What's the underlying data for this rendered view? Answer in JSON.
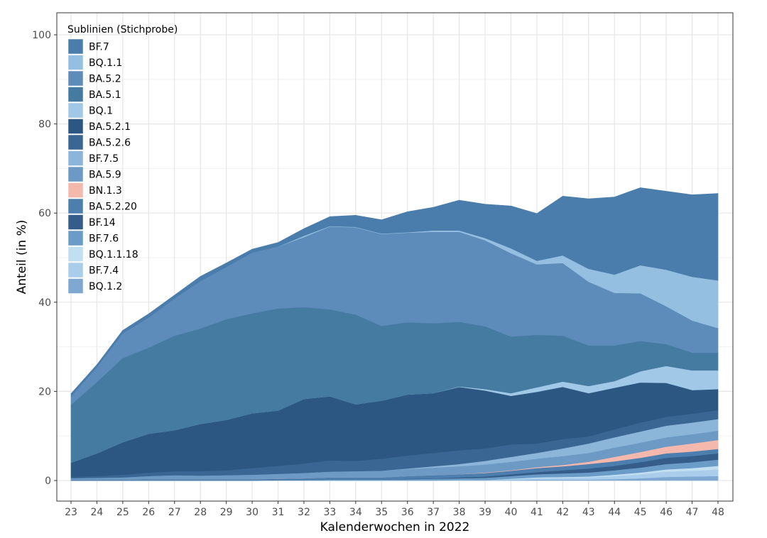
{
  "chart_data": {
    "type": "area",
    "stacked": true,
    "title": "",
    "xlabel": "Kalenderwochen in 2022",
    "ylabel": "Anteil (in %)",
    "xlim": [
      23,
      48
    ],
    "ylim": [
      0,
      100
    ],
    "x_ticks": [
      23,
      24,
      25,
      26,
      27,
      28,
      29,
      30,
      31,
      32,
      33,
      34,
      35,
      36,
      37,
      38,
      39,
      40,
      41,
      42,
      43,
      44,
      45,
      46,
      47,
      48
    ],
    "y_ticks": [
      0,
      20,
      40,
      60,
      80,
      100
    ],
    "grid": true,
    "legend": {
      "title": "Sublinien (Stichprobe)",
      "position": "top-left"
    },
    "x": [
      23,
      24,
      25,
      26,
      27,
      28,
      29,
      30,
      31,
      32,
      33,
      34,
      35,
      36,
      37,
      38,
      39,
      40,
      41,
      42,
      43,
      44,
      45,
      46,
      47,
      48
    ],
    "series": [
      {
        "name": "BQ.1.2",
        "color": "#7ea8d2",
        "values": [
          0,
          0,
          0,
          0,
          0,
          0,
          0,
          0,
          0,
          0,
          0,
          0,
          0,
          0,
          0,
          0.1,
          0.1,
          0.1,
          0.2,
          0.2,
          0.2,
          0.3,
          0.5,
          0.8,
          0.9,
          1.0
        ]
      },
      {
        "name": "BF.7.4",
        "color": "#a9cdea",
        "values": [
          0,
          0,
          0,
          0,
          0,
          0,
          0,
          0,
          0,
          0,
          0,
          0,
          0,
          0,
          0,
          0,
          0,
          0.2,
          0.3,
          0.4,
          0.5,
          0.7,
          0.9,
          1.2,
          1.3,
          1.5
        ]
      },
      {
        "name": "BQ.1.1.18",
        "color": "#c2dff2",
        "values": [
          0,
          0,
          0,
          0,
          0,
          0,
          0,
          0,
          0,
          0,
          0,
          0,
          0,
          0,
          0,
          0,
          0,
          0.1,
          0.2,
          0.2,
          0.2,
          0.3,
          0.4,
          0.5,
          0.6,
          0.8
        ]
      },
      {
        "name": "BF.7.6",
        "color": "#6a9cc7",
        "values": [
          0,
          0,
          0,
          0,
          0,
          0,
          0,
          0,
          0.1,
          0.1,
          0.2,
          0.2,
          0.2,
          0.3,
          0.4,
          0.4,
          0.5,
          0.6,
          0.7,
          0.8,
          0.9,
          1.0,
          1.1,
          1.2,
          1.3,
          1.4
        ]
      },
      {
        "name": "BF.14",
        "color": "#355d89",
        "values": [
          0,
          0,
          0,
          0,
          0,
          0,
          0,
          0,
          0,
          0,
          0,
          0,
          0,
          0.1,
          0.1,
          0.2,
          0.3,
          0.4,
          0.5,
          0.7,
          0.9,
          1.0,
          1.2,
          1.4,
          1.4,
          1.4
        ]
      },
      {
        "name": "BA.5.2.20",
        "color": "#4c7fae",
        "values": [
          0.2,
          0.2,
          0.2,
          0.3,
          0.3,
          0.3,
          0.3,
          0.3,
          0.3,
          0.4,
          0.5,
          0.5,
          0.5,
          0.6,
          0.7,
          0.7,
          0.8,
          0.8,
          0.9,
          0.9,
          1.0,
          1.0,
          1.0,
          1.0,
          1.0,
          1.0
        ]
      },
      {
        "name": "BN.1.3",
        "color": "#f5b8ad",
        "values": [
          0,
          0,
          0,
          0,
          0,
          0,
          0,
          0,
          0,
          0,
          0,
          0,
          0,
          0,
          0,
          0,
          0.1,
          0.1,
          0.2,
          0.3,
          0.5,
          1.0,
          1.3,
          1.5,
          1.8,
          2.0
        ]
      },
      {
        "name": "BA.5.9",
        "color": "#6d9ac4",
        "values": [
          0.3,
          0.4,
          0.5,
          0.7,
          0.9,
          0.8,
          0.9,
          1.0,
          1.1,
          1.2,
          1.3,
          1.4,
          1.5,
          1.6,
          1.7,
          1.8,
          1.8,
          1.9,
          1.9,
          2.0,
          2.0,
          2.1,
          2.1,
          2.1,
          2.1,
          2.1
        ]
      },
      {
        "name": "BF.7.5",
        "color": "#8bb6da",
        "values": [
          0,
          0,
          0,
          0,
          0,
          0,
          0,
          0,
          0,
          0,
          0,
          0,
          0,
          0.1,
          0.3,
          0.5,
          0.8,
          1.1,
          1.3,
          1.7,
          2.1,
          2.3,
          2.5,
          2.6,
          2.6,
          2.6
        ]
      },
      {
        "name": "BA.5.2.6",
        "color": "#3a6694",
        "values": [
          0.3,
          0.4,
          0.6,
          0.8,
          0.9,
          1.0,
          1.1,
          1.5,
          1.8,
          2.1,
          2.5,
          2.3,
          2.7,
          2.9,
          3.0,
          3.1,
          2.8,
          2.8,
          2.1,
          2.1,
          1.6,
          1.8,
          2.0,
          2.0,
          2.0,
          2.0
        ]
      },
      {
        "name": "BA.5.2.1",
        "color": "#2b5782",
        "values": [
          3.2,
          5.1,
          7.3,
          8.7,
          9.2,
          10.6,
          11.3,
          12.3,
          12.4,
          14.5,
          14.4,
          12.7,
          13.0,
          13.7,
          13.4,
          14.2,
          13.0,
          10.9,
          11.6,
          11.7,
          9.7,
          9.3,
          9.0,
          7.6,
          5.3,
          4.7
        ]
      },
      {
        "name": "BQ.1",
        "color": "#a1c8e6",
        "values": [
          0,
          0,
          0,
          0,
          0,
          0,
          0,
          0,
          0,
          0,
          0,
          0,
          0,
          0,
          0,
          0.1,
          0.3,
          0.6,
          1.0,
          1.2,
          1.6,
          1.5,
          2.5,
          3.8,
          4.4,
          4.2
        ]
      },
      {
        "name": "BA.5.1",
        "color": "#457aa1",
        "values": [
          13.0,
          16.0,
          18.9,
          19.3,
          21.2,
          21.4,
          22.6,
          22.4,
          22.9,
          20.6,
          19.5,
          20.1,
          16.8,
          16.2,
          15.7,
          14.5,
          14.1,
          12.7,
          11.8,
          10.3,
          9.1,
          8.0,
          6.8,
          4.9,
          4.0,
          4.0
        ]
      },
      {
        "name": "BA.5.2",
        "color": "#5d8bba",
        "values": [
          1.8,
          3.3,
          5.5,
          6.7,
          8.3,
          10.6,
          11.7,
          13.6,
          13.9,
          15.7,
          18.6,
          19.6,
          20.6,
          20.1,
          20.5,
          20.2,
          19.3,
          18.7,
          15.8,
          16.3,
          14.3,
          11.8,
          10.7,
          8.5,
          7.2,
          5.5
        ]
      },
      {
        "name": "BQ.1.1",
        "color": "#94bfe0",
        "values": [
          0,
          0,
          0,
          0,
          0,
          0,
          0,
          0,
          0,
          0.3,
          0.1,
          0.1,
          0.1,
          0.1,
          0.3,
          0.3,
          0.5,
          1.1,
          0.8,
          1.7,
          2.9,
          4.1,
          6.3,
          8.2,
          9.8,
          10.7
        ]
      },
      {
        "name": "BF.7",
        "color": "#4a7dab",
        "values": [
          0.7,
          0.6,
          0.7,
          0.9,
          0.8,
          1.1,
          0.9,
          0.8,
          0.9,
          1.6,
          2.1,
          2.6,
          3.1,
          4.6,
          5.2,
          6.8,
          7.6,
          9.5,
          10.6,
          13.3,
          15.7,
          17.4,
          17.4,
          17.6,
          18.4,
          19.5
        ]
      }
    ]
  }
}
